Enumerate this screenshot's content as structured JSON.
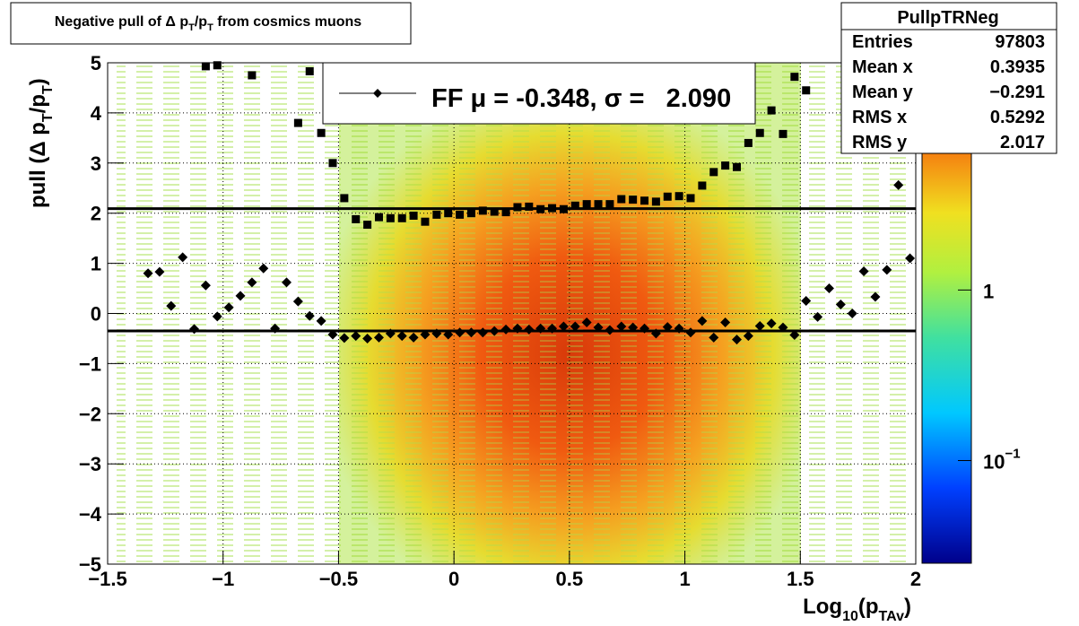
{
  "chart_data": {
    "type": "scatter",
    "title": [
      "Negative pull of Δ p",
      "T",
      "/p",
      "T",
      " from cosmics muons"
    ],
    "xlabel": [
      "Log",
      "10",
      "(p",
      "TAv",
      ")"
    ],
    "ylabel": [
      "pull (Δ p",
      "T",
      "/p",
      "T",
      ")"
    ],
    "xlim": [
      -1.5,
      2
    ],
    "ylim": [
      -5,
      5
    ],
    "xticks": [
      {
        "value": -1.5,
        "label": "−1.5"
      },
      {
        "value": -1,
        "label": "−1"
      },
      {
        "value": -0.5,
        "label": "−0.5"
      },
      0,
      0.5,
      1,
      1.5,
      2
    ],
    "yticks": [
      {
        "value": -5,
        "label": "−5"
      },
      {
        "value": -4,
        "label": "−4"
      },
      {
        "value": -3,
        "label": "−3"
      },
      {
        "value": -2,
        "label": "−2"
      },
      {
        "value": -1,
        "label": "−1"
      },
      0,
      1,
      2,
      3,
      4,
      5
    ],
    "grid": true,
    "x": [
      -1.325,
      -1.275,
      -1.225,
      -1.175,
      -1.125,
      -1.075,
      -1.025,
      -0.975,
      -0.925,
      -0.875,
      -0.825,
      -0.775,
      -0.725,
      -0.675,
      -0.625,
      -0.575,
      -0.525,
      -0.475,
      -0.425,
      -0.375,
      -0.325,
      -0.275,
      -0.225,
      -0.175,
      -0.125,
      -0.075,
      -0.025,
      0.025,
      0.075,
      0.125,
      0.175,
      0.225,
      0.275,
      0.325,
      0.375,
      0.425,
      0.475,
      0.525,
      0.575,
      0.625,
      0.675,
      0.725,
      0.775,
      0.825,
      0.875,
      0.925,
      0.975,
      1.025,
      1.075,
      1.125,
      1.175,
      1.225,
      1.275,
      1.325,
      1.375,
      1.425,
      1.475,
      1.525,
      1.575,
      1.625,
      1.675,
      1.725,
      1.775,
      1.825,
      1.875,
      1.925,
      1.975
    ],
    "series": [
      {
        "marker": "diamond",
        "color": "#000000",
        "values": [
          0.8,
          0.83,
          0.15,
          1.12,
          -0.31,
          0.56,
          -0.06,
          0.12,
          0.35,
          0.62,
          0.9,
          -0.3,
          0.62,
          0.24,
          -0.05,
          -0.15,
          -0.42,
          -0.49,
          -0.45,
          -0.5,
          -0.48,
          -0.4,
          -0.45,
          -0.48,
          -0.42,
          -0.4,
          -0.42,
          -0.38,
          -0.38,
          -0.38,
          -0.35,
          -0.32,
          -0.3,
          -0.32,
          -0.3,
          -0.3,
          -0.26,
          -0.26,
          -0.18,
          -0.28,
          -0.33,
          -0.26,
          -0.28,
          -0.3,
          -0.4,
          -0.27,
          -0.3,
          -0.38,
          -0.15,
          -0.48,
          -0.18,
          -0.52,
          -0.45,
          -0.25,
          -0.2,
          -0.28,
          -0.43,
          0.25,
          -0.07,
          0.5,
          0.18,
          0.0,
          0.84,
          0.33,
          0.87,
          2.56,
          1.1
        ]
      },
      {
        "marker": "square",
        "color": "#000000",
        "values": [
          null,
          null,
          null,
          null,
          null,
          4.93,
          4.95,
          null,
          null,
          4.75,
          null,
          null,
          null,
          3.8,
          4.83,
          3.6,
          3.0,
          2.3,
          1.88,
          1.77,
          1.92,
          1.9,
          1.9,
          1.95,
          1.83,
          1.97,
          2.0,
          1.97,
          2.0,
          2.05,
          2.03,
          2.02,
          2.12,
          2.13,
          2.08,
          2.1,
          2.08,
          2.15,
          2.18,
          2.18,
          2.18,
          2.28,
          2.27,
          2.25,
          2.23,
          2.33,
          2.34,
          2.3,
          2.55,
          2.82,
          2.95,
          2.92,
          3.4,
          3.6,
          4.05,
          3.58,
          4.72,
          4.45,
          null,
          null,
          null,
          null,
          null,
          null,
          null,
          null,
          null
        ]
      }
    ],
    "fit": {
      "mu": -0.348,
      "sigma": 2.09,
      "legend": "FF μ = -0.348, σ =   2.090"
    },
    "stats": {
      "title": "PullpTRNeg",
      "rows": [
        [
          "Entries",
          "97803"
        ],
        [
          "Mean x",
          "0.3935"
        ],
        [
          "Mean y",
          "−0.291"
        ],
        [
          "RMS x",
          "0.5292"
        ],
        [
          "RMS y",
          "2.017"
        ]
      ]
    },
    "zscale": {
      "log": true,
      "zlim": [
        0.025,
        21.5
      ],
      "zticks": [
        {
          "value": 1,
          "label": "1"
        },
        {
          "value": 0.1,
          "label": "10",
          "exponent": "−1"
        }
      ]
    }
  }
}
